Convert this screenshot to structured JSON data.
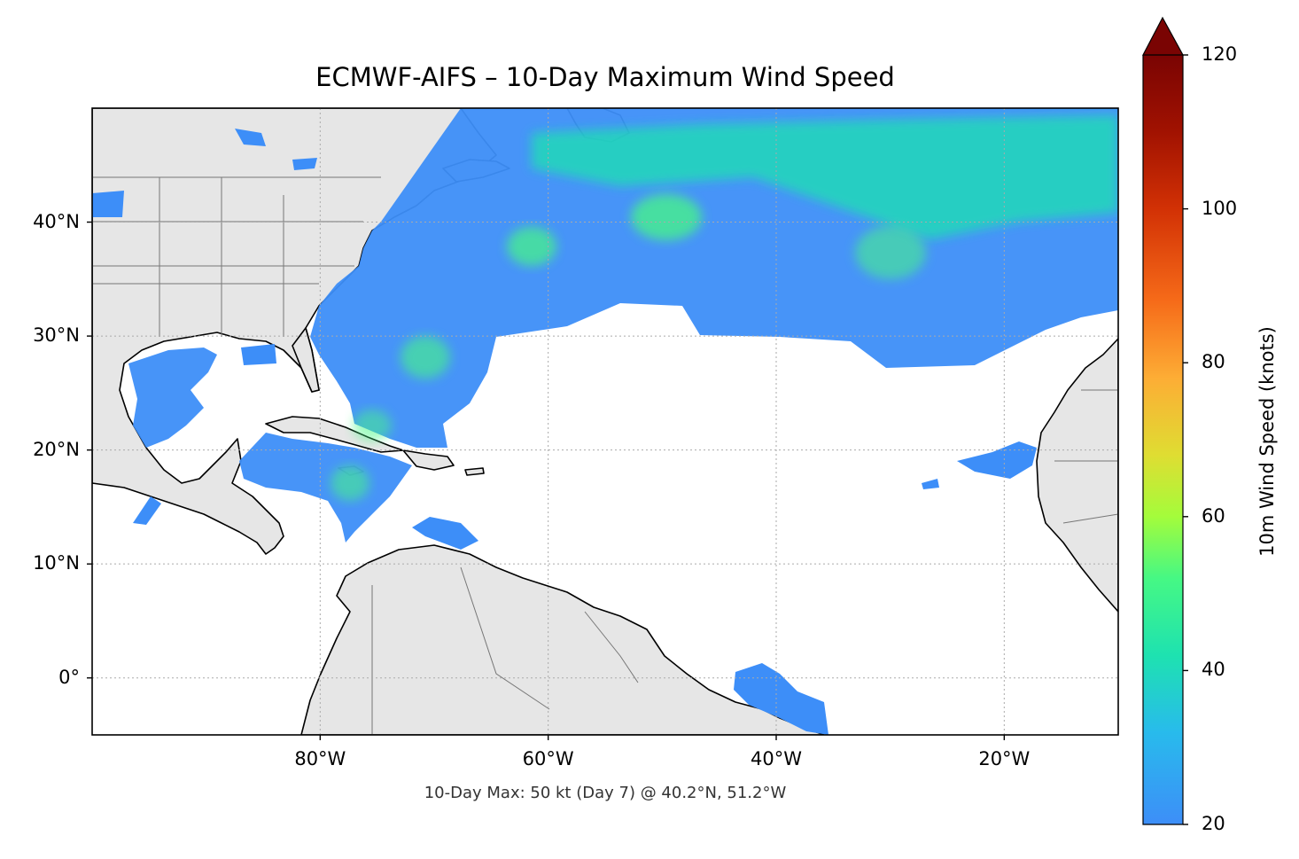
{
  "title": "ECMWF-AIFS – 10-Day Maximum Wind Speed",
  "footnote": "10-Day Max: 50 kt (Day 7) @ 40.2°N, 51.2°W",
  "map": {
    "lon_range": [
      -100,
      -10
    ],
    "lat_range": [
      -5,
      50
    ],
    "gridlines": true,
    "lat_ticks": [
      {
        "value": 40,
        "label": "40°N"
      },
      {
        "value": 30,
        "label": "30°N"
      },
      {
        "value": 20,
        "label": "20°N"
      },
      {
        "value": 10,
        "label": "10°N"
      },
      {
        "value": 0,
        "label": "0°"
      }
    ],
    "lon_ticks": [
      {
        "value": -80,
        "label": "80°W"
      },
      {
        "value": -60,
        "label": "60°W"
      },
      {
        "value": -40,
        "label": "40°W"
      },
      {
        "value": -20,
        "label": "20°W"
      }
    ],
    "land_color": "#e6e6e6",
    "coast_color": "#000000",
    "border_color": "#777777",
    "wind_field_color_low": "#3d8ef8",
    "wind_field_color_mid": "#1ee2b0",
    "storm_max": {
      "lat": 40.2,
      "lon": -51.2,
      "value_kt": 50,
      "day": 7
    }
  },
  "colorbar": {
    "label": "10m Wind Speed (knots)",
    "min": 20,
    "max": 120,
    "ticks": [
      "20",
      "40",
      "60",
      "80",
      "100",
      "120"
    ],
    "extend": "max",
    "colormap": "turbo",
    "arrow_color": "#7a0403"
  }
}
